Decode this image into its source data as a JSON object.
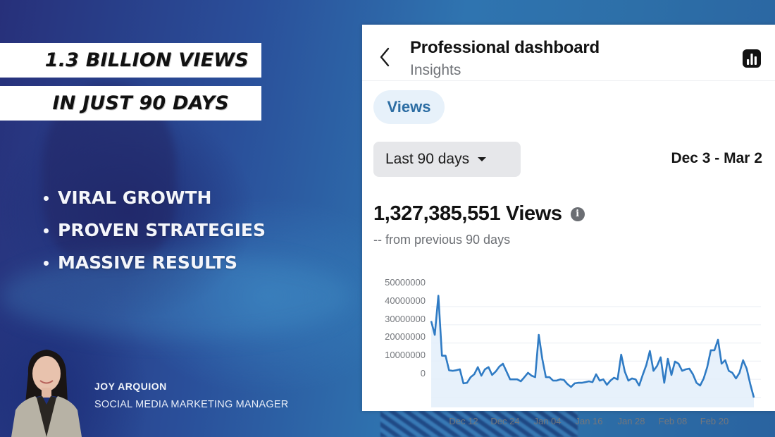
{
  "headline": {
    "line1": "1.3 BILLION VIEWS",
    "line2": "IN JUST 90 DAYS"
  },
  "bullets": [
    {
      "label": "VIRAL GROWTH"
    },
    {
      "label": "PROVEN STRATEGIES"
    },
    {
      "label": "MASSIVE RESULTS"
    }
  ],
  "presenter": {
    "name": "JOY ARQUION",
    "title": "SOCIAL MEDIA MARKETING MANAGER"
  },
  "dashboard": {
    "title": "Professional dashboard",
    "subtitle": "Insights",
    "back_icon": "chevron-left-icon",
    "insights_icon": "bar-chart-icon",
    "metric_tab": "Views",
    "range_label": "Last 90 days",
    "date_range": "Dec 3 - Mar 2",
    "total_views": "1,327,385,551 Views",
    "comparison": "-- from previous 90 days",
    "info_icon": "i",
    "colors": {
      "line": "#2f7bc4",
      "fill": "#e3eefa",
      "pill_bg": "#e7f1fa",
      "pill_text": "#2c6da3"
    }
  },
  "chart_data": {
    "type": "area",
    "title": "Views",
    "xlabel": "",
    "ylabel": "",
    "ylim": [
      0,
      55000000
    ],
    "y_ticks": [
      "50000000",
      "40000000",
      "30000000",
      "20000000",
      "10000000",
      "0"
    ],
    "x_ticks": [
      "Dec 12",
      "Dec 24",
      "Jan 04",
      "Jan 16",
      "Jan 28",
      "Feb 08",
      "Feb 20"
    ],
    "grid": true,
    "legend": null,
    "x_range": [
      "Dec 3",
      "Mar 2"
    ],
    "series": [
      {
        "name": "Views",
        "values": [
          42000000,
          34500000,
          56000000,
          23000000,
          23000000,
          15000000,
          14700000,
          15000000,
          15500000,
          7800000,
          8100000,
          11200000,
          12800000,
          16700000,
          12000000,
          15500000,
          16700000,
          12400000,
          14300000,
          17000000,
          18600000,
          14300000,
          10000000,
          10000000,
          10000000,
          8900000,
          11200000,
          13600000,
          12000000,
          11200000,
          34500000,
          21000000,
          11200000,
          11200000,
          9300000,
          9300000,
          10000000,
          9700000,
          7400000,
          5800000,
          7800000,
          8100000,
          8100000,
          8500000,
          8900000,
          8500000,
          12800000,
          9300000,
          10000000,
          7000000,
          9300000,
          10900000,
          10000000,
          23600000,
          14300000,
          9300000,
          10500000,
          10000000,
          6600000,
          12400000,
          17800000,
          25600000,
          14700000,
          17400000,
          22100000,
          8100000,
          21300000,
          12400000,
          19800000,
          18600000,
          14700000,
          15500000,
          15900000,
          12800000,
          8100000,
          6600000,
          10500000,
          16700000,
          26000000,
          26000000,
          31800000,
          18600000,
          20500000,
          14700000,
          13600000,
          10500000,
          13600000,
          20500000,
          15900000,
          7400000,
          0
        ]
      }
    ]
  }
}
